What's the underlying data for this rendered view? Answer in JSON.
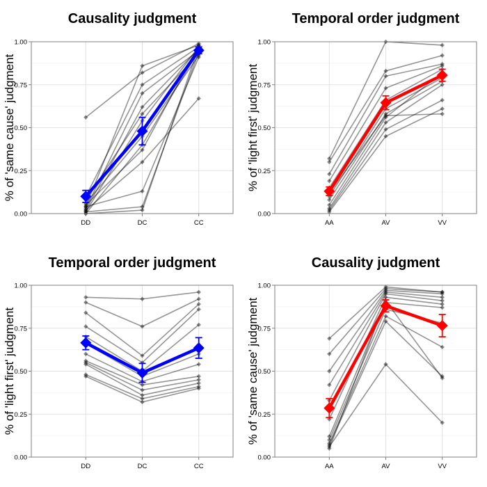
{
  "chart_data": [
    {
      "type": "line",
      "title": "Causality judgment",
      "ylabel": "% of 'same cause' judgment",
      "categories": [
        "DD",
        "DC",
        "CC"
      ],
      "ylim": [
        0,
        1
      ],
      "yticks": [
        "0.00",
        "0.25",
        "0.50",
        "0.75",
        "1.00"
      ],
      "grid": true,
      "mean_color": "#0000ff",
      "mean": {
        "values": [
          0.1,
          0.48,
          0.95
        ],
        "error": [
          0.035,
          0.08,
          0.02
        ]
      },
      "subjects": [
        [
          0.56,
          0.82,
          0.99
        ],
        [
          0.04,
          0.86,
          0.98
        ],
        [
          0.1,
          0.75,
          0.97
        ],
        [
          0.03,
          0.7,
          0.95
        ],
        [
          0.02,
          0.62,
          0.96
        ],
        [
          0.08,
          0.58,
          0.93
        ],
        [
          0.01,
          0.54,
          0.97
        ],
        [
          0.06,
          0.45,
          0.92
        ],
        [
          0.0,
          0.4,
          0.95
        ],
        [
          0.05,
          0.37,
          0.98
        ],
        [
          0.02,
          0.3,
          0.67
        ],
        [
          0.04,
          0.13,
          0.91
        ],
        [
          0.01,
          0.04,
          0.94
        ],
        [
          0.0,
          0.02,
          0.97
        ]
      ]
    },
    {
      "type": "line",
      "title": "Temporal order judgment",
      "ylabel": "% of 'light first' judgment",
      "categories": [
        "AA",
        "AV",
        "VV"
      ],
      "ylim": [
        0,
        1
      ],
      "yticks": [
        "0.00",
        "0.25",
        "0.50",
        "0.75",
        "1.00"
      ],
      "grid": true,
      "mean_color": "#ff0000",
      "mean": {
        "values": [
          0.13,
          0.645,
          0.805
        ],
        "error": [
          0.025,
          0.04,
          0.035
        ]
      },
      "subjects": [
        [
          0.32,
          1.0,
          0.98
        ],
        [
          0.3,
          0.83,
          0.92
        ],
        [
          0.23,
          0.8,
          0.87
        ],
        [
          0.19,
          0.73,
          0.86
        ],
        [
          0.15,
          0.66,
          0.84
        ],
        [
          0.1,
          0.61,
          0.79
        ],
        [
          0.08,
          0.58,
          0.77
        ],
        [
          0.05,
          0.56,
          0.82
        ],
        [
          0.03,
          0.53,
          0.75
        ],
        [
          0.02,
          0.49,
          0.66
        ],
        [
          0.01,
          0.45,
          0.61
        ],
        [
          0.12,
          0.57,
          0.58
        ]
      ]
    },
    {
      "type": "line",
      "title": "Temporal order judgment",
      "ylabel": "% of 'light first' judgment",
      "categories": [
        "DD",
        "DC",
        "CC"
      ],
      "ylim": [
        0,
        1
      ],
      "yticks": [
        "0.00",
        "0.25",
        "0.50",
        "0.75",
        "1.00"
      ],
      "grid": true,
      "mean_color": "#0000ff",
      "mean": {
        "values": [
          0.665,
          0.49,
          0.635
        ],
        "error": [
          0.04,
          0.055,
          0.06
        ]
      },
      "subjects": [
        [
          0.93,
          0.92,
          0.96
        ],
        [
          0.9,
          0.76,
          0.92
        ],
        [
          0.84,
          0.59,
          0.89
        ],
        [
          0.76,
          0.55,
          0.86
        ],
        [
          0.7,
          0.5,
          0.77
        ],
        [
          0.66,
          0.47,
          0.6
        ],
        [
          0.6,
          0.44,
          0.54
        ],
        [
          0.56,
          0.42,
          0.47
        ],
        [
          0.55,
          0.39,
          0.45
        ],
        [
          0.54,
          0.36,
          0.43
        ],
        [
          0.48,
          0.34,
          0.41
        ],
        [
          0.47,
          0.32,
          0.4
        ]
      ]
    },
    {
      "type": "line",
      "title": "Causality judgment",
      "ylabel": "% of 'same cause' judgment",
      "categories": [
        "AA",
        "AV",
        "VV"
      ],
      "ylim": [
        0,
        1
      ],
      "yticks": [
        "0.00",
        "0.25",
        "0.50",
        "0.75",
        "1.00"
      ],
      "grid": true,
      "mean_color": "#ff0000",
      "mean": {
        "values": [
          0.285,
          0.88,
          0.765
        ],
        "error": [
          0.055,
          0.035,
          0.065
        ]
      },
      "subjects": [
        [
          0.69,
          0.99,
          0.96
        ],
        [
          0.6,
          0.98,
          0.96
        ],
        [
          0.5,
          0.97,
          0.95
        ],
        [
          0.42,
          0.96,
          0.93
        ],
        [
          0.33,
          0.95,
          0.91
        ],
        [
          0.22,
          0.93,
          0.89
        ],
        [
          0.12,
          0.9,
          0.87
        ],
        [
          0.1,
          0.86,
          0.78
        ],
        [
          0.08,
          0.82,
          0.64
        ],
        [
          0.07,
          0.79,
          0.47
        ],
        [
          0.06,
          0.54,
          0.2
        ],
        [
          0.05,
          0.91,
          0.46
        ]
      ]
    }
  ]
}
